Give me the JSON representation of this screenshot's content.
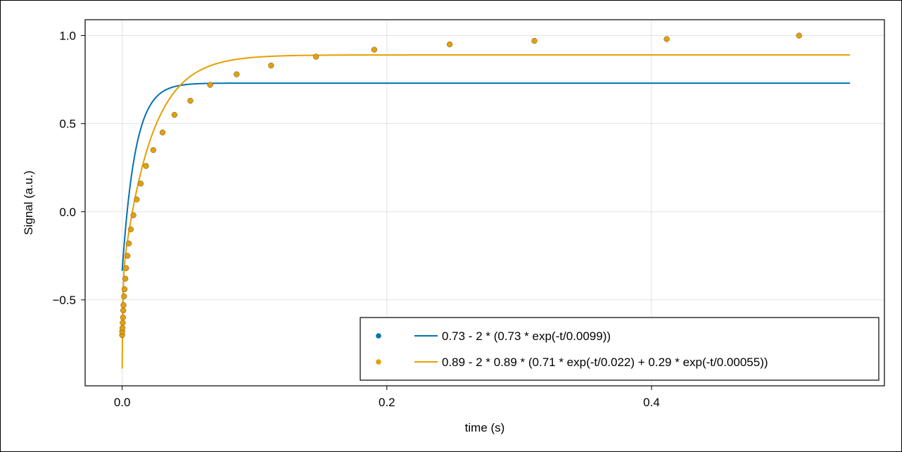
{
  "chart_data": {
    "type": "scatter",
    "xlabel": "time (s)",
    "ylabel": "Signal (a.u.)",
    "xlim": [
      -0.028,
      0.576
    ],
    "ylim": [
      -0.988,
      1.09
    ],
    "xticks": [
      0.0,
      0.2,
      0.4
    ],
    "xtick_labels": [
      "0.0",
      "0.2",
      "0.4"
    ],
    "yticks": [
      1.0,
      0.5,
      0.0,
      -0.5
    ],
    "ytick_labels": [
      "1.0",
      "0.5",
      "0.0",
      "−0.5"
    ],
    "grid": true,
    "legend_position": "bottom-right",
    "colors": {
      "series1": "#0072b2",
      "series2": "#e69f00",
      "marker_stroke": "#555555"
    },
    "series": [
      {
        "name": "0.73 - 2 * (0.73 * exp(-t/0.0099))",
        "color": "#0072b2",
        "fit": {
          "a": 0.73,
          "terms": [
            {
              "w": 0.73,
              "tau": 0.0099
            }
          ],
          "t_range": [
            0.0,
            0.55
          ]
        },
        "points": []
      },
      {
        "name": "0.89 - 2 * 0.89 * (0.71 * exp(-t/0.022) + 0.29 * exp(-t/0.00055))",
        "color": "#e69f00",
        "fit": {
          "a": 0.89,
          "terms": [
            {
              "w": 0.71,
              "tau": 0.022
            },
            {
              "w": 0.29,
              "tau": 0.00055
            }
          ],
          "t_range": [
            0.0,
            0.55
          ]
        },
        "points": [
          [
            0.0,
            -0.7
          ],
          [
            0.0,
            -0.68
          ],
          [
            0.0002,
            -0.66
          ],
          [
            0.0004,
            -0.63
          ],
          [
            0.0006,
            -0.6
          ],
          [
            0.0008,
            -0.56
          ],
          [
            0.001,
            -0.53
          ],
          [
            0.0014,
            -0.48
          ],
          [
            0.0018,
            -0.44
          ],
          [
            0.0024,
            -0.38
          ],
          [
            0.003,
            -0.32
          ],
          [
            0.004,
            -0.25
          ],
          [
            0.005,
            -0.18
          ],
          [
            0.0065,
            -0.1
          ],
          [
            0.0085,
            -0.02
          ],
          [
            0.011,
            0.07
          ],
          [
            0.014,
            0.16
          ],
          [
            0.018,
            0.26
          ],
          [
            0.0235,
            0.35
          ],
          [
            0.0305,
            0.45
          ],
          [
            0.0395,
            0.55
          ],
          [
            0.0515,
            0.63
          ],
          [
            0.0665,
            0.72
          ],
          [
            0.0865,
            0.78
          ],
          [
            0.1125,
            0.83
          ],
          [
            0.1465,
            0.88
          ],
          [
            0.1905,
            0.92
          ],
          [
            0.2475,
            0.95
          ],
          [
            0.3115,
            0.97
          ],
          [
            0.4115,
            0.98
          ],
          [
            0.5115,
            1.0
          ]
        ]
      }
    ]
  }
}
